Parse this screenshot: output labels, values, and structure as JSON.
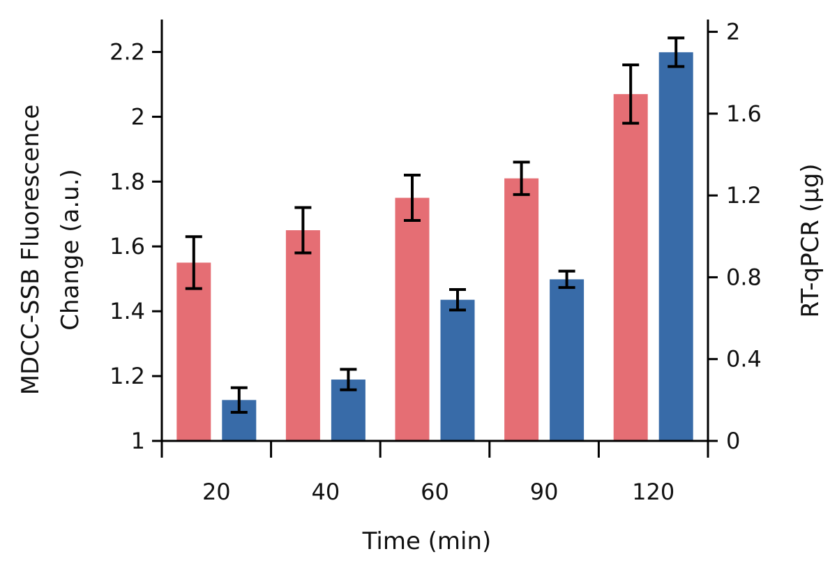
{
  "chart_data": {
    "type": "bar",
    "title": "",
    "xlabel": "Time (min)",
    "ylabel_left_line1": "MDCC-SSB Fluorescence",
    "ylabel_left_line2": "Change (a.u.)",
    "ylabel_right": "RT-qPCR (µg)",
    "categories": [
      "20",
      "40",
      "60",
      "90",
      "120"
    ],
    "ylim_left": [
      1,
      2.3
    ],
    "ylim_right": [
      0,
      2.06
    ],
    "yticks_left": [
      "1",
      "1.2",
      "1.4",
      "1.6",
      "1.8",
      "2",
      "2.2"
    ],
    "yticks_left_values": [
      1,
      1.2,
      1.4,
      1.6,
      1.8,
      2.0,
      2.2
    ],
    "yticks_right": [
      "0",
      "0.4",
      "0.8",
      "1.2",
      "1.6",
      "2"
    ],
    "yticks_right_values": [
      0,
      0.4,
      0.8,
      1.2,
      1.6,
      2.0
    ],
    "grid": false,
    "legend": "none",
    "series": [
      {
        "axis": "left",
        "color": "#e56e74",
        "values": [
          1.55,
          1.65,
          1.75,
          1.81,
          2.07
        ],
        "errors": [
          0.08,
          0.07,
          0.07,
          0.05,
          0.09
        ]
      },
      {
        "axis": "right",
        "color": "#386ba8",
        "values": [
          0.2,
          0.3,
          0.69,
          0.79,
          1.9
        ],
        "errors": [
          0.06,
          0.05,
          0.05,
          0.04,
          0.07
        ]
      }
    ]
  }
}
